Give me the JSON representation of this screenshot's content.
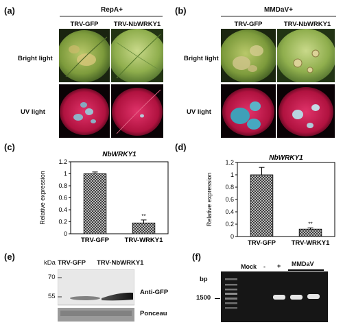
{
  "panels": {
    "a": {
      "label": "(a)",
      "header": "RepA+",
      "columns": [
        "TRV-GFP",
        "TRV-NbWRKY1"
      ],
      "rows": [
        "Bright light",
        "UV light"
      ]
    },
    "b": {
      "label": "(b)",
      "header": "MMDaV+",
      "columns": [
        "TRV-GFP",
        "TRV-NbWRKY1"
      ],
      "rows": [
        "Bright light",
        "UV light"
      ]
    },
    "e": {
      "label": "(e)",
      "kda": "kDa",
      "lanes": [
        "TRV-GFP",
        "TRV-NbWRKY1"
      ],
      "markers": [
        "70",
        "55"
      ],
      "blot_label": "Anti-GFP",
      "stain_label": "Ponceau"
    },
    "f": {
      "label": "(f)",
      "bp": "bp",
      "marker": "1500",
      "lanes": [
        "Mock",
        "-",
        "+"
      ],
      "group_label": "MMDaV"
    }
  },
  "chart_data": [
    {
      "panel": "(c)",
      "type": "bar",
      "title": "NbWRKY1",
      "ylabel": "Relative expression",
      "categories": [
        "TRV-GFP",
        "TRV-WRKY1"
      ],
      "values": [
        1.0,
        0.18
      ],
      "errors": [
        0.03,
        0.05
      ],
      "annotations": [
        "",
        "**"
      ],
      "ylim": [
        0,
        1.2
      ],
      "yticks": [
        "0",
        "0.2",
        "0.4",
        "0.6",
        "0.8",
        "1",
        "1.2"
      ]
    },
    {
      "panel": "(d)",
      "type": "bar",
      "title": "NbWRKY1",
      "ylabel": "Relative expression",
      "categories": [
        "TRV-GFP",
        "TRV-WRKY1"
      ],
      "values": [
        1.0,
        0.12
      ],
      "errors": [
        0.12,
        0.02
      ],
      "annotations": [
        "",
        "**"
      ],
      "ylim": [
        0,
        1.2
      ],
      "yticks": [
        "0",
        "0.2",
        "0.4",
        "0.6",
        "0.8",
        "1",
        "1.2"
      ]
    }
  ]
}
